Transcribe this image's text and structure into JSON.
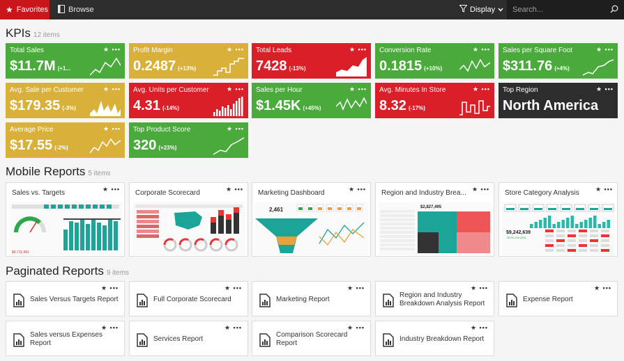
{
  "topbar": {
    "favorites_label": "Favorites",
    "browse_label": "Browse",
    "display_label": "Display",
    "search_placeholder": "Search..."
  },
  "kpis_section": {
    "title": "KPIs",
    "count": "12 items"
  },
  "kpis": [
    {
      "name": "Total Sales",
      "value": "$11.7M",
      "change": "(+1...",
      "color": "#4aaa3b"
    },
    {
      "name": "Profit Margin",
      "value": "0.2487",
      "change": "(+13%)",
      "color": "#d9b13a"
    },
    {
      "name": "Total Leads",
      "value": "7428",
      "change": "(-13%)",
      "color": "#db1f29"
    },
    {
      "name": "Conversion Rate",
      "value": "0.1815",
      "change": "(+10%)",
      "color": "#4aaa3b"
    },
    {
      "name": "Sales per Square Foot",
      "value": "$311.76",
      "change": "(+4%)",
      "color": "#4aaa3b"
    },
    {
      "name": "Avg. Sale per Customer",
      "value": "$179.35",
      "change": "(-3%)",
      "color": "#d9b13a"
    },
    {
      "name": "Avg. Units per Customer",
      "value": "4.31",
      "change": "(-14%)",
      "color": "#db1f29"
    },
    {
      "name": "Sales per Hour",
      "value": "$1.45K",
      "change": "(+45%)",
      "color": "#4aaa3b"
    },
    {
      "name": "Avg. Minutes In Store",
      "value": "8.32",
      "change": "(-17%)",
      "color": "#db1f29"
    },
    {
      "name": "Top Region",
      "value": "North America",
      "change": "",
      "color": "#2d2d2d"
    },
    {
      "name": "Average Price",
      "value": "$17.55",
      "change": "(-2%)",
      "color": "#d9b13a"
    },
    {
      "name": "Top Product Score",
      "value": "320",
      "change": "(+23%)",
      "color": "#4aaa3b"
    }
  ],
  "mobile_section": {
    "title": "Mobile Reports",
    "count": "5 items"
  },
  "mobile_reports": [
    {
      "name": "Sales vs. Targets",
      "thumb_value": "$9,711,481"
    },
    {
      "name": "Corporate Scorecard"
    },
    {
      "name": "Marketing Dashboard",
      "thumb_value": "2,461"
    },
    {
      "name": "Region and Industry Brea...",
      "thumb_value": "$2,827,495"
    },
    {
      "name": "Store Category Analysis",
      "thumb_value": "$9,242,639",
      "thumb_sub": "+$700,416 (8%)"
    }
  ],
  "paginated_section": {
    "title": "Paginated Reports",
    "count": "9 items"
  },
  "paginated_reports": [
    {
      "name": "Sales Versus Targets Report"
    },
    {
      "name": "Full Corporate Scorecard"
    },
    {
      "name": "Marketing Report"
    },
    {
      "name": "Region and Industry Breakdown Analysis Report"
    },
    {
      "name": "Expense Report"
    },
    {
      "name": "Sales versus Expenses Report"
    },
    {
      "name": "Services Report"
    },
    {
      "name": "Comparison Scorecard Report"
    },
    {
      "name": "Industry Breakdown Report"
    }
  ],
  "tile_actions": "★ •••"
}
